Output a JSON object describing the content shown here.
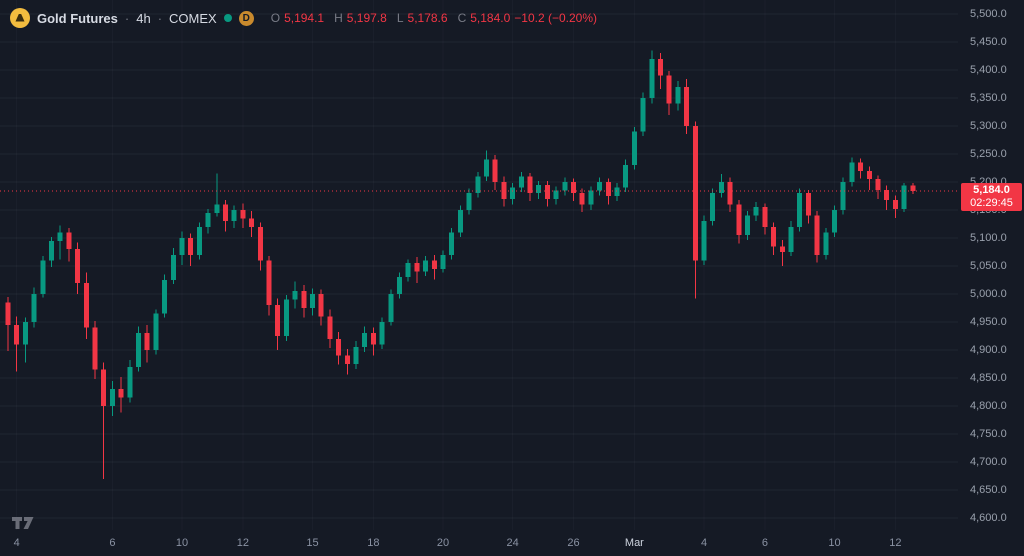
{
  "header": {
    "symbol": "Gold Futures",
    "separator": "·",
    "timeframe": "4h",
    "exchange": "COMEX",
    "badge": "D",
    "ohlc": {
      "o_key": "O",
      "o": "5,194.1",
      "h_key": "H",
      "h": "5,197.8",
      "l_key": "L",
      "l": "5,178.6",
      "c_key": "C",
      "c": "5,184.0",
      "change": "−10.2 (−0.20%)"
    }
  },
  "chart_data": {
    "type": "candlestick",
    "title": "Gold Futures · 4h · COMEX",
    "ylim": [
      4600,
      5500
    ],
    "grid": true,
    "colors": {
      "up": "#089981",
      "down": "#F23645",
      "last_line": "#F23645"
    },
    "y_ticks": [
      {
        "v": 5500,
        "label": "5,500.0"
      },
      {
        "v": 5450,
        "label": "5,450.0"
      },
      {
        "v": 5400,
        "label": "5,400.0"
      },
      {
        "v": 5350,
        "label": "5,350.0"
      },
      {
        "v": 5300,
        "label": "5,300.0"
      },
      {
        "v": 5250,
        "label": "5,250.0"
      },
      {
        "v": 5200,
        "label": "5,200.0"
      },
      {
        "v": 5150,
        "label": "5,150.0"
      },
      {
        "v": 5100,
        "label": "5,100.0"
      },
      {
        "v": 5050,
        "label": "5,050.0"
      },
      {
        "v": 5000,
        "label": "5,000.0"
      },
      {
        "v": 4950,
        "label": "4,950.0"
      },
      {
        "v": 4900,
        "label": "4,900.0"
      },
      {
        "v": 4850,
        "label": "4,850.0"
      },
      {
        "v": 4800,
        "label": "4,800.0"
      },
      {
        "v": 4750,
        "label": "4,750.0"
      },
      {
        "v": 4700,
        "label": "4,700.0"
      },
      {
        "v": 4650,
        "label": "4,650.0"
      },
      {
        "v": 4600,
        "label": "4,600.0"
      }
    ],
    "x_ticks": [
      {
        "i": 1,
        "label": "4"
      },
      {
        "i": 12,
        "label": "6"
      },
      {
        "i": 20,
        "label": "10"
      },
      {
        "i": 27,
        "label": "12"
      },
      {
        "i": 35,
        "label": "15"
      },
      {
        "i": 42,
        "label": "18"
      },
      {
        "i": 50,
        "label": "20"
      },
      {
        "i": 58,
        "label": "24"
      },
      {
        "i": 65,
        "label": "26"
      },
      {
        "i": 72,
        "label": "Mar",
        "major": true
      },
      {
        "i": 80,
        "label": "4"
      },
      {
        "i": 87,
        "label": "6"
      },
      {
        "i": 95,
        "label": "10"
      },
      {
        "i": 102,
        "label": "12"
      }
    ],
    "candles": [
      [
        4985,
        4995,
        4898,
        4945
      ],
      [
        4945,
        4960,
        4862,
        4910
      ],
      [
        4910,
        4958,
        4878,
        4950
      ],
      [
        4950,
        5012,
        4940,
        5000
      ],
      [
        5000,
        5068,
        4994,
        5060
      ],
      [
        5060,
        5102,
        5048,
        5095
      ],
      [
        5095,
        5122,
        5062,
        5110
      ],
      [
        5110,
        5118,
        5058,
        5080
      ],
      [
        5080,
        5092,
        5000,
        5020
      ],
      [
        5020,
        5038,
        4920,
        4940
      ],
      [
        4940,
        4952,
        4848,
        4865
      ],
      [
        4865,
        4878,
        4670,
        4800
      ],
      [
        4800,
        4845,
        4782,
        4830
      ],
      [
        4830,
        4852,
        4788,
        4815
      ],
      [
        4815,
        4882,
        4806,
        4870
      ],
      [
        4870,
        4942,
        4862,
        4930
      ],
      [
        4930,
        4945,
        4878,
        4900
      ],
      [
        4900,
        4972,
        4892,
        4965
      ],
      [
        4965,
        5035,
        4958,
        5025
      ],
      [
        5025,
        5082,
        5018,
        5070
      ],
      [
        5070,
        5112,
        5052,
        5100
      ],
      [
        5100,
        5108,
        5050,
        5070
      ],
      [
        5070,
        5128,
        5062,
        5120
      ],
      [
        5120,
        5152,
        5108,
        5145
      ],
      [
        5145,
        5215,
        5138,
        5160
      ],
      [
        5160,
        5168,
        5112,
        5130
      ],
      [
        5130,
        5158,
        5118,
        5150
      ],
      [
        5150,
        5162,
        5118,
        5135
      ],
      [
        5135,
        5148,
        5102,
        5120
      ],
      [
        5120,
        5128,
        5042,
        5060
      ],
      [
        5060,
        5068,
        4962,
        4980
      ],
      [
        4980,
        4992,
        4900,
        4925
      ],
      [
        4925,
        4998,
        4916,
        4990
      ],
      [
        4990,
        5022,
        4974,
        5005
      ],
      [
        5005,
        5016,
        4958,
        4975
      ],
      [
        4975,
        5010,
        4962,
        5000
      ],
      [
        5000,
        5008,
        4944,
        4960
      ],
      [
        4960,
        4972,
        4904,
        4920
      ],
      [
        4920,
        4932,
        4874,
        4890
      ],
      [
        4890,
        4902,
        4856,
        4875
      ],
      [
        4875,
        4916,
        4866,
        4905
      ],
      [
        4905,
        4942,
        4896,
        4930
      ],
      [
        4930,
        4940,
        4890,
        4910
      ],
      [
        4910,
        4958,
        4902,
        4950
      ],
      [
        4950,
        5008,
        4944,
        5000
      ],
      [
        5000,
        5038,
        4992,
        5030
      ],
      [
        5030,
        5062,
        5022,
        5055
      ],
      [
        5055,
        5066,
        5020,
        5040
      ],
      [
        5040,
        5068,
        5032,
        5060
      ],
      [
        5060,
        5070,
        5026,
        5045
      ],
      [
        5045,
        5078,
        5038,
        5070
      ],
      [
        5070,
        5118,
        5062,
        5110
      ],
      [
        5110,
        5158,
        5102,
        5150
      ],
      [
        5150,
        5188,
        5142,
        5180
      ],
      [
        5180,
        5218,
        5172,
        5210
      ],
      [
        5210,
        5256,
        5202,
        5240
      ],
      [
        5240,
        5248,
        5186,
        5200
      ],
      [
        5200,
        5210,
        5156,
        5170
      ],
      [
        5170,
        5198,
        5160,
        5190
      ],
      [
        5190,
        5218,
        5182,
        5210
      ],
      [
        5210,
        5216,
        5166,
        5180
      ],
      [
        5180,
        5202,
        5170,
        5195
      ],
      [
        5195,
        5202,
        5156,
        5170
      ],
      [
        5170,
        5192,
        5160,
        5185
      ],
      [
        5185,
        5208,
        5176,
        5200
      ],
      [
        5200,
        5206,
        5166,
        5180
      ],
      [
        5180,
        5188,
        5146,
        5160
      ],
      [
        5160,
        5192,
        5150,
        5185
      ],
      [
        5185,
        5208,
        5176,
        5200
      ],
      [
        5200,
        5206,
        5160,
        5175
      ],
      [
        5175,
        5198,
        5166,
        5190
      ],
      [
        5190,
        5240,
        5182,
        5230
      ],
      [
        5230,
        5298,
        5222,
        5290
      ],
      [
        5290,
        5360,
        5282,
        5350
      ],
      [
        5350,
        5435,
        5340,
        5420
      ],
      [
        5420,
        5430,
        5366,
        5390
      ],
      [
        5390,
        5398,
        5320,
        5340
      ],
      [
        5340,
        5380,
        5328,
        5370
      ],
      [
        5370,
        5384,
        5286,
        5300
      ],
      [
        5300,
        5308,
        4992,
        5060
      ],
      [
        5060,
        5140,
        5052,
        5130
      ],
      [
        5130,
        5188,
        5122,
        5180
      ],
      [
        5180,
        5214,
        5172,
        5200
      ],
      [
        5200,
        5208,
        5146,
        5160
      ],
      [
        5160,
        5168,
        5090,
        5105
      ],
      [
        5105,
        5148,
        5096,
        5140
      ],
      [
        5140,
        5164,
        5130,
        5155
      ],
      [
        5155,
        5162,
        5106,
        5120
      ],
      [
        5120,
        5128,
        5070,
        5085
      ],
      [
        5085,
        5096,
        5050,
        5075
      ],
      [
        5075,
        5130,
        5068,
        5120
      ],
      [
        5120,
        5188,
        5112,
        5180
      ],
      [
        5180,
        5186,
        5126,
        5140
      ],
      [
        5140,
        5148,
        5056,
        5070
      ],
      [
        5070,
        5118,
        5062,
        5110
      ],
      [
        5110,
        5158,
        5102,
        5150
      ],
      [
        5150,
        5208,
        5142,
        5200
      ],
      [
        5200,
        5244,
        5192,
        5235
      ],
      [
        5235,
        5242,
        5206,
        5220
      ],
      [
        5220,
        5228,
        5186,
        5205
      ],
      [
        5205,
        5212,
        5170,
        5186
      ],
      [
        5186,
        5194,
        5150,
        5168
      ],
      [
        5168,
        5176,
        5136,
        5152
      ],
      [
        5152,
        5198,
        5146,
        5194.1
      ],
      [
        5194.1,
        5197.8,
        5178.6,
        5184.0
      ]
    ],
    "last": {
      "value": 5184.0,
      "price_label": "5,184.0",
      "countdown": "02:29:45"
    }
  }
}
